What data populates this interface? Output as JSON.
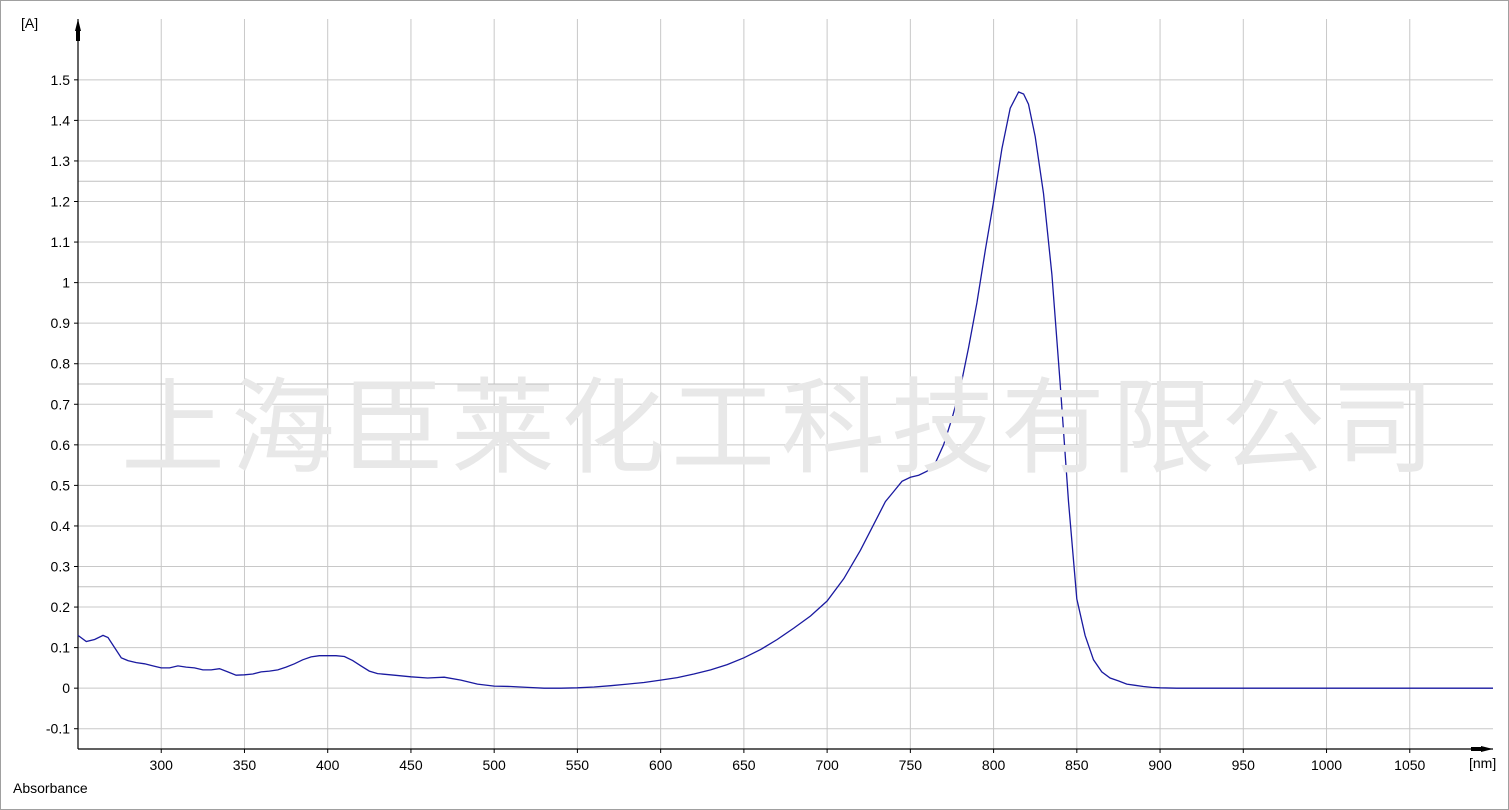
{
  "window": {
    "frame_color": "#a0a0a0",
    "background": "#ffffff"
  },
  "chart_data": {
    "type": "line",
    "ylabel_unit": "[A]",
    "xlabel_unit": "[nm]",
    "series_label": "Absorbance",
    "watermark": "上海臣莱化工科技有限公司",
    "xlim": [
      250,
      1100
    ],
    "ylim": [
      -0.15,
      1.65
    ],
    "x_ticks": [
      300,
      350,
      400,
      450,
      500,
      550,
      600,
      650,
      700,
      750,
      800,
      850,
      900,
      950,
      1000,
      1050
    ],
    "y_ticks": [
      -0.1,
      0,
      0.1,
      0.2,
      0.3,
      0.4,
      0.5,
      0.6,
      0.7,
      0.8,
      0.9,
      1,
      1.1,
      1.2,
      1.3,
      1.4,
      1.5
    ],
    "y_tick_labels": [
      "-0.1",
      "0",
      "0.1",
      "0.2",
      "0.3",
      "0.4",
      "0.5",
      "0.6",
      "0.7",
      "0.8",
      "0.9",
      "1",
      "1.1",
      "1.2",
      "1.3",
      "1.4",
      "1.5"
    ],
    "grid": true,
    "line_color": "#1a1aa0",
    "grid_color": "#c8c8c8",
    "series": [
      {
        "values_x": [
          250,
          255,
          260,
          265,
          268,
          272,
          276,
          280,
          285,
          290,
          295,
          300,
          305,
          310,
          315,
          320,
          325,
          330,
          335,
          340,
          345,
          350,
          355,
          360,
          365,
          370,
          375,
          380,
          385,
          390,
          395,
          400,
          405,
          410,
          415,
          420,
          425,
          430,
          440,
          450,
          460,
          470,
          480,
          490,
          500,
          510,
          520,
          530,
          540,
          550,
          560,
          570,
          580,
          590,
          600,
          610,
          620,
          630,
          640,
          650,
          660,
          670,
          680,
          690,
          700,
          710,
          720,
          730,
          735,
          740,
          745,
          750,
          755,
          760,
          765,
          770,
          775,
          780,
          785,
          790,
          795,
          800,
          805,
          810,
          815,
          818,
          821,
          825,
          830,
          835,
          840,
          845,
          850,
          855,
          860,
          865,
          870,
          875,
          880,
          885,
          890,
          895,
          900,
          910,
          950,
          1000,
          1050,
          1100
        ],
        "values_y": [
          0.13,
          0.115,
          0.12,
          0.13,
          0.125,
          0.1,
          0.075,
          0.068,
          0.063,
          0.06,
          0.055,
          0.05,
          0.05,
          0.055,
          0.052,
          0.05,
          0.045,
          0.045,
          0.048,
          0.04,
          0.032,
          0.033,
          0.035,
          0.04,
          0.042,
          0.045,
          0.052,
          0.06,
          0.07,
          0.077,
          0.08,
          0.08,
          0.08,
          0.078,
          0.068,
          0.055,
          0.042,
          0.036,
          0.032,
          0.028,
          0.025,
          0.027,
          0.02,
          0.01,
          0.005,
          0.004,
          0.002,
          0.0,
          0.0,
          0.001,
          0.003,
          0.006,
          0.01,
          0.014,
          0.02,
          0.026,
          0.035,
          0.045,
          0.058,
          0.075,
          0.095,
          0.12,
          0.148,
          0.178,
          0.215,
          0.27,
          0.34,
          0.42,
          0.46,
          0.485,
          0.51,
          0.52,
          0.525,
          0.535,
          0.555,
          0.6,
          0.665,
          0.74,
          0.84,
          0.95,
          1.08,
          1.2,
          1.33,
          1.43,
          1.47,
          1.465,
          1.44,
          1.36,
          1.22,
          1.02,
          0.75,
          0.46,
          0.22,
          0.13,
          0.07,
          0.04,
          0.025,
          0.018,
          0.01,
          0.007,
          0.004,
          0.002,
          0.001,
          0.0,
          0.0,
          0.0,
          0.0,
          0.0
        ]
      }
    ]
  }
}
